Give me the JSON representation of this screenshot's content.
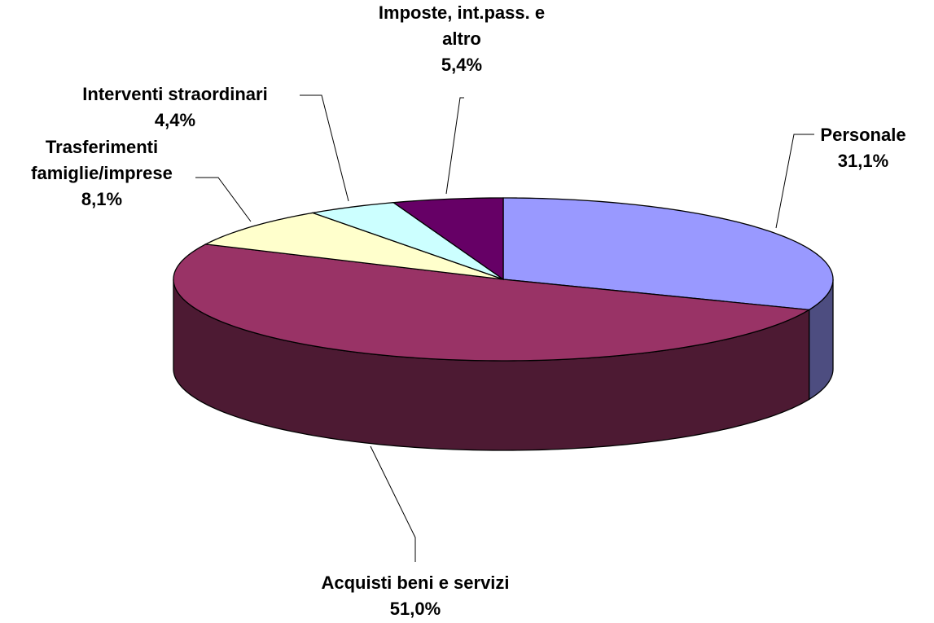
{
  "chart_data": {
    "type": "pie3d",
    "categories": [
      "Personale",
      "Acquisti beni e servizi",
      "Trasferimenti famiglie/imprese",
      "Interventi straordinari",
      "Imposte, int.pass. e altro"
    ],
    "values": [
      31.1,
      51.0,
      8.1,
      4.4,
      5.4
    ],
    "value_labels": [
      "31,1%",
      "51,0%",
      "8,1%",
      "4,4%",
      "5,4%"
    ],
    "colors": [
      "#9999ff",
      "#993366",
      "#ffffcc",
      "#ccffff",
      "#660066"
    ]
  }
}
